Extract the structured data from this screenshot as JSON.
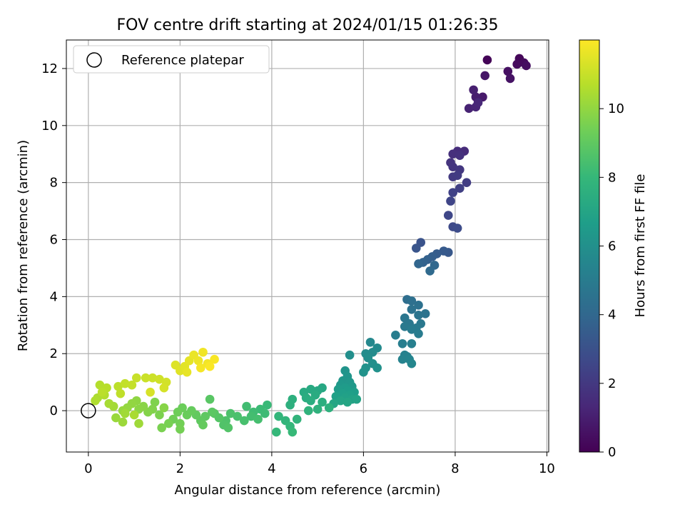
{
  "chart_data": {
    "type": "scatter",
    "title": "FOV centre drift starting at 2024/01/15 01:26:35",
    "xlabel": "Angular distance from reference (arcmin)",
    "ylabel": "Rotation from reference (arcmin)",
    "xlim": [
      -0.48,
      10.04
    ],
    "ylim": [
      -1.45,
      13.0
    ],
    "xticks": [
      0,
      2,
      4,
      6,
      8,
      10
    ],
    "yticks": [
      0,
      2,
      4,
      6,
      8,
      10,
      12
    ],
    "grid": true,
    "legend": {
      "position": "upper-left",
      "entries": [
        "Reference platepar"
      ]
    },
    "reference_point": {
      "x": 0,
      "y": 0
    },
    "colorbar": {
      "label": "Hours from first FF file",
      "colormap": "viridis",
      "range": [
        0,
        12
      ],
      "ticks": [
        0,
        2,
        4,
        6,
        8,
        10
      ]
    },
    "colormap_stops": [
      "#440154",
      "#482878",
      "#3e4989",
      "#31688e",
      "#26828e",
      "#1f9e89",
      "#35b779",
      "#6ece58",
      "#b5de2b",
      "#fde725"
    ],
    "series": [
      {
        "points": [
          {
            "x": 8.7,
            "y": 12.3,
            "c": 0.1
          },
          {
            "x": 9.4,
            "y": 12.35,
            "c": 0.2
          },
          {
            "x": 9.35,
            "y": 12.15,
            "c": 0.3
          },
          {
            "x": 9.5,
            "y": 12.2,
            "c": 0.35
          },
          {
            "x": 9.55,
            "y": 12.1,
            "c": 0.45
          },
          {
            "x": 9.15,
            "y": 11.9,
            "c": 0.5
          },
          {
            "x": 9.2,
            "y": 11.65,
            "c": 0.6
          },
          {
            "x": 8.65,
            "y": 11.75,
            "c": 0.7
          },
          {
            "x": 8.6,
            "y": 11.0,
            "c": 0.85
          },
          {
            "x": 8.45,
            "y": 11.0,
            "c": 0.95
          },
          {
            "x": 8.4,
            "y": 11.25,
            "c": 1.05
          },
          {
            "x": 8.3,
            "y": 10.6,
            "c": 1.15
          },
          {
            "x": 8.45,
            "y": 10.65,
            "c": 1.25
          },
          {
            "x": 8.5,
            "y": 10.8,
            "c": 1.35
          },
          {
            "x": 8.2,
            "y": 9.1,
            "c": 1.5
          },
          {
            "x": 8.05,
            "y": 9.1,
            "c": 1.55
          },
          {
            "x": 7.95,
            "y": 9.0,
            "c": 1.65
          },
          {
            "x": 8.1,
            "y": 8.95,
            "c": 1.7
          },
          {
            "x": 7.9,
            "y": 8.7,
            "c": 1.8
          },
          {
            "x": 7.95,
            "y": 8.55,
            "c": 1.85
          },
          {
            "x": 8.1,
            "y": 8.45,
            "c": 1.95
          },
          {
            "x": 7.95,
            "y": 8.2,
            "c": 2.05
          },
          {
            "x": 8.05,
            "y": 8.25,
            "c": 2.1
          },
          {
            "x": 8.25,
            "y": 8.0,
            "c": 2.2
          },
          {
            "x": 8.1,
            "y": 7.8,
            "c": 2.3
          },
          {
            "x": 7.95,
            "y": 7.65,
            "c": 2.4
          },
          {
            "x": 7.9,
            "y": 7.35,
            "c": 2.5
          },
          {
            "x": 7.85,
            "y": 6.85,
            "c": 2.6
          },
          {
            "x": 7.95,
            "y": 6.45,
            "c": 2.7
          },
          {
            "x": 8.05,
            "y": 6.4,
            "c": 2.8
          },
          {
            "x": 7.25,
            "y": 5.9,
            "c": 3.1
          },
          {
            "x": 7.15,
            "y": 5.7,
            "c": 3.2
          },
          {
            "x": 7.85,
            "y": 5.55,
            "c": 3.3
          },
          {
            "x": 7.75,
            "y": 5.6,
            "c": 3.4
          },
          {
            "x": 7.6,
            "y": 5.5,
            "c": 3.5
          },
          {
            "x": 7.5,
            "y": 5.4,
            "c": 3.6
          },
          {
            "x": 7.4,
            "y": 5.3,
            "c": 3.7
          },
          {
            "x": 7.3,
            "y": 5.2,
            "c": 3.8
          },
          {
            "x": 7.2,
            "y": 5.15,
            "c": 3.9
          },
          {
            "x": 7.55,
            "y": 5.1,
            "c": 4.0
          },
          {
            "x": 7.45,
            "y": 4.9,
            "c": 4.1
          },
          {
            "x": 6.95,
            "y": 3.9,
            "c": 4.3
          },
          {
            "x": 7.05,
            "y": 3.85,
            "c": 4.4
          },
          {
            "x": 7.2,
            "y": 3.7,
            "c": 4.45
          },
          {
            "x": 7.05,
            "y": 3.55,
            "c": 4.5
          },
          {
            "x": 7.35,
            "y": 3.4,
            "c": 4.55
          },
          {
            "x": 7.2,
            "y": 3.35,
            "c": 4.6
          },
          {
            "x": 6.9,
            "y": 3.25,
            "c": 4.7
          },
          {
            "x": 7.0,
            "y": 3.05,
            "c": 4.75
          },
          {
            "x": 7.25,
            "y": 3.05,
            "c": 4.8
          },
          {
            "x": 6.9,
            "y": 2.95,
            "c": 4.85
          },
          {
            "x": 7.15,
            "y": 2.9,
            "c": 4.9
          },
          {
            "x": 7.05,
            "y": 2.85,
            "c": 4.95
          },
          {
            "x": 7.2,
            "y": 2.7,
            "c": 5.0
          },
          {
            "x": 6.7,
            "y": 2.65,
            "c": 5.1
          },
          {
            "x": 6.85,
            "y": 2.35,
            "c": 5.15
          },
          {
            "x": 7.05,
            "y": 2.35,
            "c": 5.2
          },
          {
            "x": 6.9,
            "y": 1.95,
            "c": 5.3
          },
          {
            "x": 6.95,
            "y": 1.9,
            "c": 5.35
          },
          {
            "x": 6.85,
            "y": 1.8,
            "c": 5.4
          },
          {
            "x": 7.0,
            "y": 1.8,
            "c": 5.45
          },
          {
            "x": 7.05,
            "y": 1.65,
            "c": 5.5
          },
          {
            "x": 6.15,
            "y": 2.4,
            "c": 5.6
          },
          {
            "x": 6.3,
            "y": 2.2,
            "c": 5.7
          },
          {
            "x": 6.2,
            "y": 2.05,
            "c": 5.75
          },
          {
            "x": 6.05,
            "y": 2.0,
            "c": 5.8
          },
          {
            "x": 6.1,
            "y": 1.85,
            "c": 5.9
          },
          {
            "x": 5.7,
            "y": 1.95,
            "c": 5.95
          },
          {
            "x": 6.2,
            "y": 1.65,
            "c": 6.0
          },
          {
            "x": 6.3,
            "y": 1.5,
            "c": 6.05
          },
          {
            "x": 6.05,
            "y": 1.5,
            "c": 6.1
          },
          {
            "x": 6.0,
            "y": 1.35,
            "c": 6.15
          },
          {
            "x": 5.6,
            "y": 1.4,
            "c": 6.2
          },
          {
            "x": 5.65,
            "y": 1.2,
            "c": 6.25
          },
          {
            "x": 5.55,
            "y": 1.05,
            "c": 6.3
          },
          {
            "x": 5.7,
            "y": 1.0,
            "c": 6.35
          },
          {
            "x": 5.5,
            "y": 0.9,
            "c": 6.4
          },
          {
            "x": 5.75,
            "y": 0.85,
            "c": 6.45
          },
          {
            "x": 5.6,
            "y": 0.8,
            "c": 6.5
          },
          {
            "x": 5.45,
            "y": 0.75,
            "c": 6.55
          },
          {
            "x": 5.65,
            "y": 0.7,
            "c": 6.6
          },
          {
            "x": 5.8,
            "y": 0.65,
            "c": 6.65
          },
          {
            "x": 5.55,
            "y": 0.6,
            "c": 6.7
          },
          {
            "x": 5.7,
            "y": 0.55,
            "c": 6.75
          },
          {
            "x": 5.4,
            "y": 0.5,
            "c": 6.8
          },
          {
            "x": 5.6,
            "y": 0.45,
            "c": 6.85
          },
          {
            "x": 5.75,
            "y": 0.4,
            "c": 6.9
          },
          {
            "x": 5.85,
            "y": 0.4,
            "c": 6.95
          },
          {
            "x": 5.5,
            "y": 0.35,
            "c": 7.0
          },
          {
            "x": 5.65,
            "y": 0.3,
            "c": 7.05
          },
          {
            "x": 5.35,
            "y": 0.25,
            "c": 7.1
          },
          {
            "x": 5.1,
            "y": 0.8,
            "c": 7.15
          },
          {
            "x": 5.0,
            "y": 0.7,
            "c": 7.2
          },
          {
            "x": 4.85,
            "y": 0.75,
            "c": 7.25
          },
          {
            "x": 4.7,
            "y": 0.65,
            "c": 7.3
          },
          {
            "x": 4.95,
            "y": 0.55,
            "c": 7.35
          },
          {
            "x": 4.75,
            "y": 0.45,
            "c": 7.4
          },
          {
            "x": 4.85,
            "y": 0.35,
            "c": 7.45
          },
          {
            "x": 5.1,
            "y": 0.3,
            "c": 7.5
          },
          {
            "x": 4.45,
            "y": 0.4,
            "c": 7.55
          },
          {
            "x": 4.4,
            "y": 0.2,
            "c": 7.6
          },
          {
            "x": 5.25,
            "y": 0.1,
            "c": 7.65
          },
          {
            "x": 5.0,
            "y": 0.05,
            "c": 7.7
          },
          {
            "x": 4.8,
            "y": 0.0,
            "c": 7.75
          },
          {
            "x": 4.55,
            "y": -0.3,
            "c": 7.8
          },
          {
            "x": 4.3,
            "y": -0.35,
            "c": 7.85
          },
          {
            "x": 4.15,
            "y": -0.2,
            "c": 7.9
          },
          {
            "x": 4.4,
            "y": -0.55,
            "c": 7.95
          },
          {
            "x": 4.1,
            "y": -0.75,
            "c": 8.0
          },
          {
            "x": 4.45,
            "y": -0.75,
            "c": 8.05
          },
          {
            "x": 3.9,
            "y": 0.2,
            "c": 8.1
          },
          {
            "x": 3.75,
            "y": 0.05,
            "c": 8.15
          },
          {
            "x": 3.85,
            "y": -0.1,
            "c": 8.2
          },
          {
            "x": 3.6,
            "y": -0.05,
            "c": 8.25
          },
          {
            "x": 3.45,
            "y": 0.15,
            "c": 8.3
          },
          {
            "x": 3.55,
            "y": -0.2,
            "c": 8.35
          },
          {
            "x": 3.7,
            "y": -0.3,
            "c": 8.4
          },
          {
            "x": 3.4,
            "y": -0.35,
            "c": 8.45
          },
          {
            "x": 3.25,
            "y": -0.2,
            "c": 8.5
          },
          {
            "x": 3.1,
            "y": -0.1,
            "c": 8.55
          },
          {
            "x": 3.0,
            "y": -0.35,
            "c": 8.6
          },
          {
            "x": 2.95,
            "y": -0.5,
            "c": 8.65
          },
          {
            "x": 3.05,
            "y": -0.6,
            "c": 8.7
          },
          {
            "x": 2.85,
            "y": -0.25,
            "c": 8.75
          },
          {
            "x": 2.75,
            "y": -0.1,
            "c": 8.8
          },
          {
            "x": 2.65,
            "y": 0.4,
            "c": 8.85
          },
          {
            "x": 2.7,
            "y": -0.05,
            "c": 8.9
          },
          {
            "x": 2.55,
            "y": -0.2,
            "c": 8.95
          },
          {
            "x": 2.45,
            "y": -0.35,
            "c": 9.0
          },
          {
            "x": 2.35,
            "y": -0.15,
            "c": 9.05
          },
          {
            "x": 2.5,
            "y": -0.5,
            "c": 9.1
          },
          {
            "x": 2.25,
            "y": 0.0,
            "c": 9.15
          },
          {
            "x": 2.15,
            "y": -0.15,
            "c": 9.2
          },
          {
            "x": 2.05,
            "y": 0.1,
            "c": 9.25
          },
          {
            "x": 1.95,
            "y": -0.05,
            "c": 9.3
          },
          {
            "x": 1.85,
            "y": -0.3,
            "c": 9.35
          },
          {
            "x": 2.0,
            "y": -0.45,
            "c": 9.4
          },
          {
            "x": 2.0,
            "y": -0.65,
            "c": 9.45
          },
          {
            "x": 1.75,
            "y": -0.45,
            "c": 9.5
          },
          {
            "x": 1.6,
            "y": -0.6,
            "c": 9.55
          },
          {
            "x": 1.55,
            "y": -0.15,
            "c": 9.6
          },
          {
            "x": 1.45,
            "y": 0.3,
            "c": 9.65
          },
          {
            "x": 1.4,
            "y": 0.05,
            "c": 9.7
          },
          {
            "x": 1.3,
            "y": -0.05,
            "c": 9.75
          },
          {
            "x": 1.65,
            "y": 0.1,
            "c": 9.8
          },
          {
            "x": 1.2,
            "y": 0.15,
            "c": 9.85
          },
          {
            "x": 1.1,
            "y": 0.05,
            "c": 9.9
          },
          {
            "x": 1.05,
            "y": 0.35,
            "c": 9.95
          },
          {
            "x": 0.95,
            "y": 0.25,
            "c": 10.0
          },
          {
            "x": 0.85,
            "y": 0.1,
            "c": 10.05
          },
          {
            "x": 0.75,
            "y": 0.0,
            "c": 10.1
          },
          {
            "x": 0.6,
            "y": -0.25,
            "c": 10.15
          },
          {
            "x": 0.75,
            "y": -0.4,
            "c": 10.2
          },
          {
            "x": 1.1,
            "y": -0.45,
            "c": 10.25
          },
          {
            "x": 0.8,
            "y": -0.1,
            "c": 10.3
          },
          {
            "x": 0.55,
            "y": 0.15,
            "c": 10.35
          },
          {
            "x": 0.45,
            "y": 0.25,
            "c": 10.4
          },
          {
            "x": 1.0,
            "y": -0.15,
            "c": 10.45
          },
          {
            "x": 0.2,
            "y": 0.45,
            "c": 10.5
          },
          {
            "x": 0.15,
            "y": 0.35,
            "c": 10.55
          },
          {
            "x": 0.35,
            "y": 0.55,
            "c": 10.6
          },
          {
            "x": 0.25,
            "y": 0.9,
            "c": 10.65
          },
          {
            "x": 0.4,
            "y": 0.8,
            "c": 10.7
          },
          {
            "x": 0.3,
            "y": 0.65,
            "c": 10.75
          },
          {
            "x": 0.65,
            "y": 0.85,
            "c": 10.8
          },
          {
            "x": 0.7,
            "y": 0.6,
            "c": 10.85
          },
          {
            "x": 0.8,
            "y": 0.95,
            "c": 10.9
          },
          {
            "x": 0.95,
            "y": 0.9,
            "c": 10.95
          },
          {
            "x": 1.05,
            "y": 1.15,
            "c": 11.0
          },
          {
            "x": 1.25,
            "y": 1.15,
            "c": 11.05
          },
          {
            "x": 1.4,
            "y": 1.15,
            "c": 11.1
          },
          {
            "x": 1.55,
            "y": 1.1,
            "c": 11.15
          },
          {
            "x": 1.7,
            "y": 1.0,
            "c": 11.2
          },
          {
            "x": 1.65,
            "y": 0.8,
            "c": 11.25
          },
          {
            "x": 1.35,
            "y": 0.65,
            "c": 11.3
          },
          {
            "x": 1.9,
            "y": 1.6,
            "c": 11.4
          },
          {
            "x": 2.0,
            "y": 1.4,
            "c": 11.45
          },
          {
            "x": 2.1,
            "y": 1.55,
            "c": 11.5
          },
          {
            "x": 2.2,
            "y": 1.75,
            "c": 11.55
          },
          {
            "x": 2.15,
            "y": 1.35,
            "c": 11.6
          },
          {
            "x": 2.3,
            "y": 1.95,
            "c": 11.65
          },
          {
            "x": 2.4,
            "y": 1.75,
            "c": 11.7
          },
          {
            "x": 2.5,
            "y": 2.05,
            "c": 11.75
          },
          {
            "x": 2.6,
            "y": 1.65,
            "c": 11.8
          },
          {
            "x": 2.45,
            "y": 1.5,
            "c": 11.85
          },
          {
            "x": 2.75,
            "y": 1.8,
            "c": 11.9
          },
          {
            "x": 2.65,
            "y": 1.55,
            "c": 11.95
          }
        ]
      }
    ]
  }
}
